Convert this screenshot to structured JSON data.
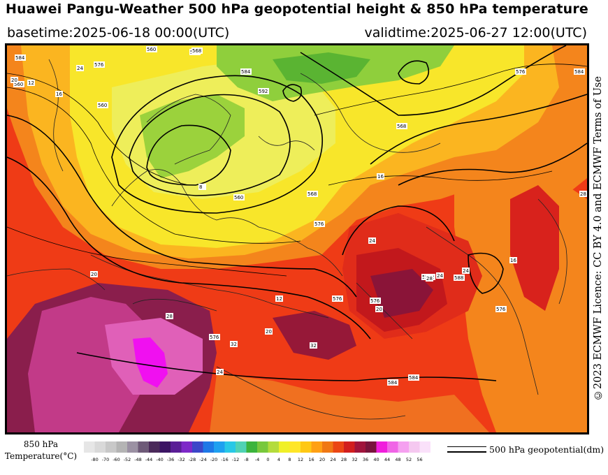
{
  "header": {
    "title": "Huawei Pangu-Weather 500 hPa geopotential height & 850 hPa temperature",
    "basetime": "basetime:2025-06-18 00:00(UTC)",
    "validtime": "validtime:2025-06-27 12:00(UTC)"
  },
  "licence": "©2023 ECMWF Licence: CC BY 4.0 and ECMWF Terms of Use",
  "legend": {
    "label_line1": "850 hPa",
    "label_line2": "Temperature(°C)",
    "ticks": [
      "-80",
      "-70",
      "-60",
      "-52",
      "-48",
      "-44",
      "-40",
      "-36",
      "-32",
      "-28",
      "-24",
      "-20",
      "-16",
      "-12",
      "-8",
      "-4",
      "0",
      "4",
      "8",
      "12",
      "16",
      "20",
      "24",
      "28",
      "32",
      "36",
      "40",
      "44",
      "48",
      "52",
      "56"
    ],
    "colors": [
      "#e6e6e6",
      "#d9d9d9",
      "#c8c8c8",
      "#b4b4b4",
      "#9b91a3",
      "#6e5a78",
      "#4b2a5a",
      "#3c1464",
      "#5a1e96",
      "#7d28c8",
      "#3c46c8",
      "#1e78e6",
      "#1ea0f0",
      "#28c8e6",
      "#50d2b4",
      "#3cb43c",
      "#78c83c",
      "#b4dc3c",
      "#f0f028",
      "#ffe628",
      "#ffc814",
      "#ffa014",
      "#f07814",
      "#eb4614",
      "#d21e1e",
      "#a0143c",
      "#78143c",
      "#f01edc",
      "#f064e6",
      "#f5a0f0",
      "#f5c8f0",
      "#fae1fa"
    ],
    "contour_label": "500 hPa geopotential(dm)"
  },
  "map": {
    "contour_labels": [
      "560",
      "568",
      "576",
      "584",
      "592",
      "560",
      "576",
      "576",
      "592",
      "568",
      "576",
      "584",
      "560",
      "576",
      "584",
      "588",
      "592",
      "568",
      "576",
      "584",
      "560",
      "568",
      "576",
      "584"
    ],
    "temp_labels": [
      "12",
      "16",
      "20",
      "24",
      "28",
      "32",
      "20",
      "24",
      "16",
      "28",
      "32",
      "8",
      "12",
      "20",
      "24",
      "24",
      "16",
      "20",
      "28",
      "24"
    ]
  }
}
